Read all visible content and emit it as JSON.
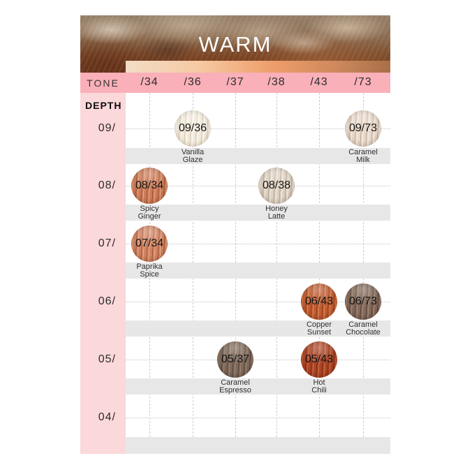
{
  "title": "WARM",
  "tone_row": {
    "label": "TONE",
    "tones": [
      "/34",
      "/36",
      "/37",
      "/38",
      "/43",
      "/73"
    ]
  },
  "depth_column": {
    "label": "DEPTH",
    "depths": [
      "09/",
      "08/",
      "07/",
      "06/",
      "05/",
      "04/"
    ]
  },
  "swatches": [
    {
      "code": "09/36",
      "name": [
        "Vanilla",
        "Glaze"
      ],
      "depth": "09/",
      "tone": "/36",
      "row": 0,
      "col": 1,
      "colors": {
        "base": "#f2eadd",
        "dark": "#d8c5a8",
        "light": "#fffdf7"
      }
    },
    {
      "code": "09/73",
      "name": [
        "Caramel",
        "Milk"
      ],
      "depth": "09/",
      "tone": "/73",
      "row": 0,
      "col": 5,
      "colors": {
        "base": "#e7d8ca",
        "dark": "#c2a793",
        "light": "#f9f3ec"
      }
    },
    {
      "code": "08/34",
      "name": [
        "Spicy",
        "Ginger"
      ],
      "depth": "08/",
      "tone": "/34",
      "row": 1,
      "col": 0,
      "colors": {
        "base": "#cc7c5a",
        "dark": "#a3512e",
        "light": "#ecab81"
      }
    },
    {
      "code": "08/38",
      "name": [
        "Honey",
        "Latte"
      ],
      "depth": "08/",
      "tone": "/38",
      "row": 1,
      "col": 3,
      "colors": {
        "base": "#dcd0c1",
        "dark": "#b5a18b",
        "light": "#f6f0e8"
      }
    },
    {
      "code": "07/34",
      "name": [
        "Paprika",
        "Spice"
      ],
      "depth": "07/",
      "tone": "/34",
      "row": 2,
      "col": 0,
      "colors": {
        "base": "#cf8263",
        "dark": "#a65635",
        "light": "#edb088"
      }
    },
    {
      "code": "06/43",
      "name": [
        "Copper",
        "Sunset"
      ],
      "depth": "06/",
      "tone": "/43",
      "row": 3,
      "col": 4,
      "colors": {
        "base": "#c05c32",
        "dark": "#8f3e1b",
        "light": "#e28c58"
      }
    },
    {
      "code": "06/73",
      "name": [
        "Caramel",
        "Chocolate"
      ],
      "depth": "06/",
      "tone": "/73",
      "row": 3,
      "col": 5,
      "colors": {
        "base": "#84695a",
        "dark": "#574338",
        "light": "#a98f7c"
      }
    },
    {
      "code": "05/37",
      "name": [
        "Caramel",
        "Espresso"
      ],
      "depth": "05/",
      "tone": "/37",
      "row": 4,
      "col": 2,
      "colors": {
        "base": "#7f695b",
        "dark": "#52433a",
        "light": "#a18871"
      }
    },
    {
      "code": "05/43",
      "name": [
        "Hot",
        "Chili"
      ],
      "depth": "05/",
      "tone": "/43",
      "row": 4,
      "col": 4,
      "colors": {
        "base": "#ac4425",
        "dark": "#7c2c11",
        "light": "#d07347"
      }
    }
  ],
  "palette": {
    "tone_row_bg": "#f9b0b9",
    "sidebar_bg": "#fbd8da",
    "band_bg": "#e8e7e7",
    "grid_dash": "#cdcdcd",
    "grid_dot": "#c2c2c2",
    "title_color": "#ffffff",
    "gradient_bar": [
      "#f3dcc5",
      "#f6c9a3",
      "#ee9e6b",
      "#d08a5e",
      "#a86f48"
    ],
    "banner_tones": [
      "#95806b",
      "#8b6a4e",
      "#7d4a28",
      "#6e3a1e"
    ]
  }
}
